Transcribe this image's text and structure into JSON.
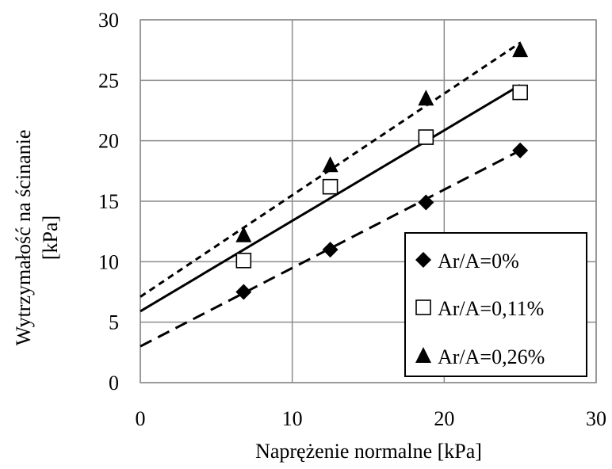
{
  "chart_data": {
    "type": "scatter",
    "xlabel": "Naprężenie normalne [kPa]",
    "ylabel_lines": [
      "Wytrzymałość na ścinanie",
      "[kPa]"
    ],
    "xlim": [
      0,
      30
    ],
    "ylim": [
      0,
      30
    ],
    "x_ticks": [
      "0",
      "10",
      "20",
      "30"
    ],
    "y_ticks": [
      "0",
      "5",
      "10",
      "15",
      "20",
      "25",
      "30"
    ],
    "grid": true,
    "legend_position": "bottom-right",
    "series": [
      {
        "name": "Ar/A=0%",
        "marker": "diamond",
        "line_style": "long-dash",
        "x": [
          6.8,
          12.5,
          18.8,
          25.0
        ],
        "y": [
          7.5,
          11.0,
          14.9,
          19.2
        ],
        "trend": {
          "x": [
            0,
            25
          ],
          "y": [
            3.0,
            19.2
          ]
        }
      },
      {
        "name": "Ar/A=0,11%",
        "marker": "open-square",
        "line_style": "solid",
        "x": [
          6.8,
          12.5,
          18.8,
          25.0
        ],
        "y": [
          10.1,
          16.2,
          20.3,
          24.0
        ],
        "trend": {
          "x": [
            0,
            25
          ],
          "y": [
            5.9,
            24.6
          ]
        }
      },
      {
        "name": "Ar/A=0,26%",
        "marker": "triangle",
        "line_style": "short-dash",
        "x": [
          6.8,
          12.5,
          18.8,
          25.0
        ],
        "y": [
          12.2,
          18.0,
          23.5,
          27.5
        ],
        "trend": {
          "x": [
            0,
            25
          ],
          "y": [
            7.1,
            28.1
          ]
        }
      }
    ]
  }
}
